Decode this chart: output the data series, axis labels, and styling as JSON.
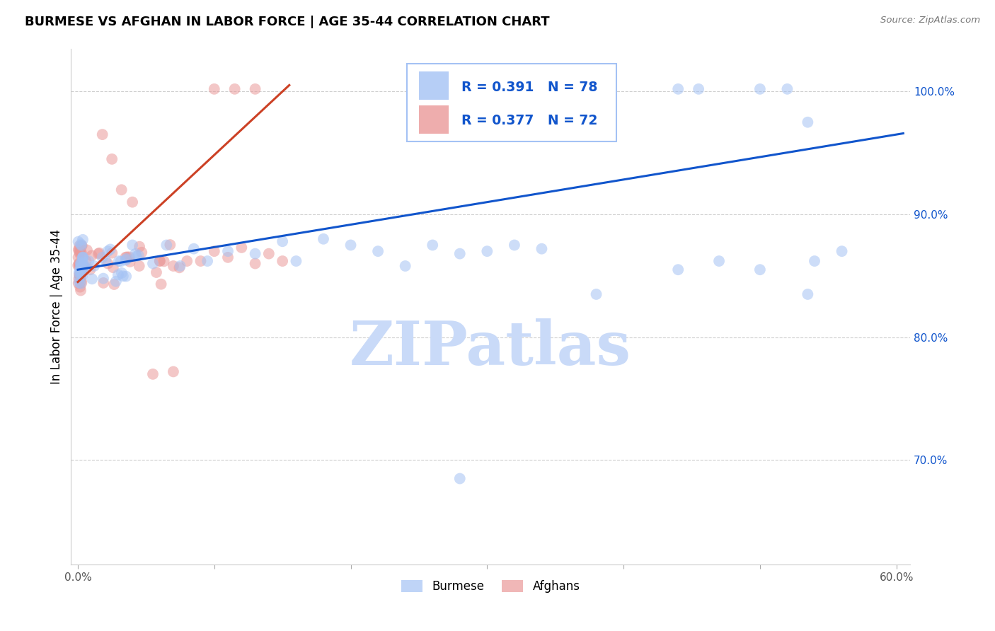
{
  "title": "BURMESE VS AFGHAN IN LABOR FORCE | AGE 35-44 CORRELATION CHART",
  "source": "Source: ZipAtlas.com",
  "ylabel": "In Labor Force | Age 35-44",
  "xlim": [
    -0.005,
    0.61
  ],
  "ylim": [
    0.615,
    1.035
  ],
  "yticks": [
    0.7,
    0.8,
    0.9,
    1.0
  ],
  "ytick_labels": [
    "70.0%",
    "80.0%",
    "90.0%",
    "100.0%"
  ],
  "xticks": [
    0.0,
    0.1,
    0.2,
    0.3,
    0.4,
    0.5,
    0.6
  ],
  "xtick_labels": [
    "0.0%",
    "",
    "",
    "",
    "",
    "",
    "60.0%"
  ],
  "burmese_color": "#a4c2f4",
  "afghan_color": "#ea9999",
  "burmese_line_color": "#1155cc",
  "afghan_line_color": "#cc4125",
  "legend_text_color": "#1155cc",
  "R_burmese": 0.391,
  "N_burmese": 78,
  "R_afghan": 0.377,
  "N_afghan": 72,
  "watermark": "ZIPatlas",
  "watermark_color": "#c9daf8",
  "legend_label_burmese": "Burmese",
  "legend_label_afghan": "Afghans"
}
